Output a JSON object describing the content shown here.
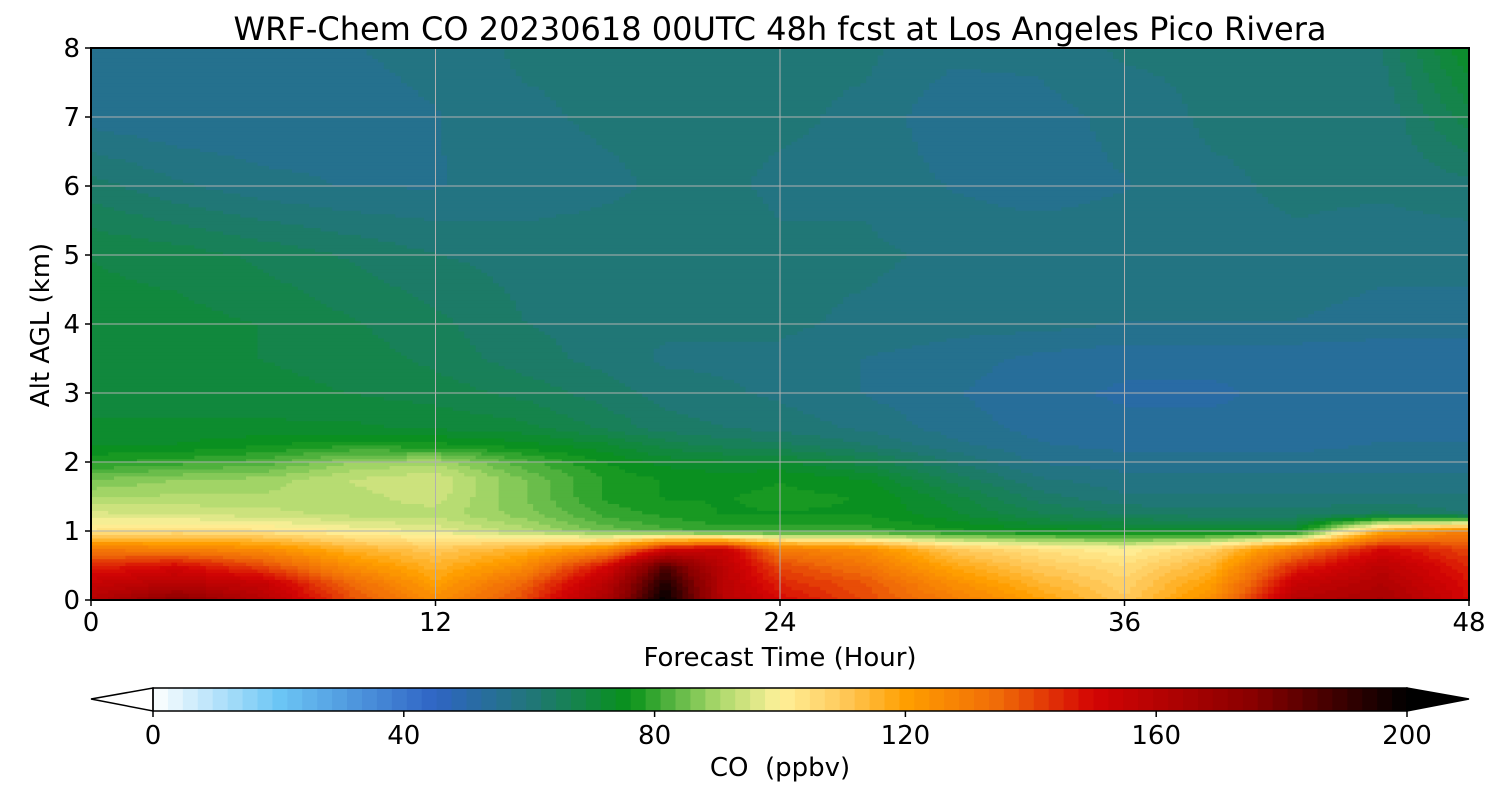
{
  "chart_data": {
    "type": "heatmap",
    "title": "WRF-Chem CO  20230618 00UTC 48h fcst at Los Angeles Pico Rivera",
    "xlabel": "Forecast Time (Hour)",
    "ylabel": "Alt AGL (km)",
    "xlim": [
      0,
      48
    ],
    "ylim": [
      0,
      8
    ],
    "xticks": [
      0,
      12,
      24,
      36,
      48
    ],
    "yticks": [
      0,
      1,
      2,
      3,
      4,
      5,
      6,
      7,
      8
    ],
    "grid": true,
    "colorbar": {
      "label": "CO  (ppbv)",
      "min": 0,
      "max": 200,
      "ticks": [
        0,
        40,
        80,
        120,
        160,
        200
      ],
      "extend": "both",
      "colors": [
        {
          "v": 0,
          "c": "#ffffff"
        },
        {
          "v": 20,
          "c": "#6cc6f5"
        },
        {
          "v": 45,
          "c": "#2f64c4"
        },
        {
          "v": 60,
          "c": "#21767a"
        },
        {
          "v": 76,
          "c": "#08921a"
        },
        {
          "v": 90,
          "c": "#a9d86a"
        },
        {
          "v": 100,
          "c": "#fff19a"
        },
        {
          "v": 110,
          "c": "#ffc95a"
        },
        {
          "v": 120,
          "c": "#ff9f00"
        },
        {
          "v": 135,
          "c": "#f06a08"
        },
        {
          "v": 150,
          "c": "#d40404"
        },
        {
          "v": 175,
          "c": "#8a0000"
        },
        {
          "v": 200,
          "c": "#000000"
        }
      ]
    },
    "field": {
      "x": [
        0,
        3,
        6,
        9,
        12,
        15,
        18,
        20,
        22,
        24,
        27,
        30,
        33,
        36,
        39,
        42,
        45,
        48
      ],
      "y": [
        0,
        0.25,
        0.5,
        0.75,
        1.0,
        1.25,
        1.5,
        1.75,
        2.0,
        2.25,
        2.5,
        3,
        3.5,
        4,
        5,
        6,
        7,
        8
      ],
      "values": [
        [
          160,
          175,
          160,
          140,
          125,
          140,
          165,
          200,
          160,
          150,
          140,
          130,
          120,
          110,
          125,
          160,
          165,
          150
        ],
        [
          155,
          160,
          155,
          135,
          120,
          135,
          160,
          195,
          160,
          145,
          138,
          125,
          115,
          108,
          120,
          155,
          162,
          148
        ],
        [
          145,
          150,
          140,
          125,
          115,
          125,
          150,
          185,
          158,
          140,
          132,
          118,
          110,
          105,
          115,
          145,
          158,
          145
        ],
        [
          130,
          128,
          125,
          115,
          110,
          115,
          125,
          150,
          155,
          130,
          125,
          110,
          104,
          100,
          108,
          130,
          150,
          140
        ],
        [
          103,
          105,
          103,
          100,
          97,
          92,
          85,
          82,
          80,
          80,
          80,
          77,
          75,
          74,
          73,
          75,
          118,
          130
        ],
        [
          96,
          95,
          94,
          92,
          92,
          87,
          80,
          78,
          76,
          76,
          76,
          72,
          67,
          64,
          63,
          63,
          65,
          62
        ],
        [
          90,
          91,
          91,
          92,
          94,
          86,
          78,
          76,
          76,
          77,
          76,
          70,
          63,
          60,
          60,
          60,
          60,
          60
        ],
        [
          86,
          88,
          89,
          93,
          95,
          86,
          78,
          76,
          75,
          76,
          74,
          66,
          60,
          58,
          58,
          58,
          58,
          58
        ],
        [
          78,
          80,
          82,
          88,
          90,
          82,
          76,
          73,
          72,
          72,
          68,
          62,
          57,
          56,
          56,
          56,
          56,
          56
        ],
        [
          74,
          74,
          76,
          78,
          77,
          75,
          72,
          68,
          66,
          65,
          62,
          58,
          55,
          54,
          54,
          54,
          55,
          55
        ],
        [
          72,
          72,
          72,
          72,
          71,
          70,
          66,
          63,
          62,
          61,
          59,
          56,
          54,
          53,
          53,
          53,
          54,
          54
        ],
        [
          70,
          70,
          70,
          69,
          68,
          66,
          63,
          61,
          60,
          59,
          57,
          55,
          53,
          52,
          52,
          53,
          53,
          53
        ],
        [
          70,
          70,
          69,
          68,
          66,
          63,
          61,
          59,
          59,
          59,
          57,
          56,
          54,
          53,
          53,
          53,
          53,
          53
        ],
        [
          70,
          70,
          69,
          67,
          65,
          62,
          61,
          60,
          60,
          60,
          59,
          58,
          58,
          57,
          57,
          57,
          56,
          56
        ],
        [
          69,
          68,
          66,
          64,
          62,
          61,
          61,
          61,
          61,
          60,
          60,
          59,
          59,
          59,
          59,
          59,
          58,
          58
        ],
        [
          63,
          60,
          58,
          57,
          57,
          58,
          59,
          60,
          60,
          59,
          59,
          57,
          56,
          57,
          59,
          60,
          60,
          61
        ],
        [
          56,
          55,
          55,
          56,
          57,
          59,
          60,
          60,
          60,
          60,
          59,
          55,
          56,
          58,
          60,
          60,
          60,
          68
        ],
        [
          56,
          56,
          56,
          57,
          58,
          60,
          60,
          60,
          60,
          60,
          60,
          58,
          58,
          60,
          60,
          60,
          62,
          74
        ]
      ]
    }
  }
}
